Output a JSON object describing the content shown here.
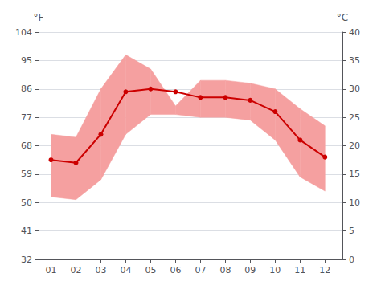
{
  "chart_data": {
    "type": "line",
    "x": [
      1,
      2,
      3,
      4,
      5,
      6,
      7,
      8,
      9,
      10,
      11,
      12
    ],
    "xlim": [
      0.5,
      12.7
    ],
    "xticks": [
      {
        "value": 1,
        "label": "01"
      },
      {
        "value": 2,
        "label": "02"
      },
      {
        "value": 3,
        "label": "03"
      },
      {
        "value": 4,
        "label": "04"
      },
      {
        "value": 5,
        "label": "05"
      },
      {
        "value": 6,
        "label": "06"
      },
      {
        "value": 7,
        "label": "07"
      },
      {
        "value": 8,
        "label": "08"
      },
      {
        "value": 9,
        "label": "09"
      },
      {
        "value": 10,
        "label": "10"
      },
      {
        "value": 11,
        "label": "11"
      },
      {
        "value": 12,
        "label": "12"
      }
    ],
    "ylabel": "°F",
    "ylim": [
      32,
      104
    ],
    "yticks": [
      32,
      41,
      50,
      59,
      68,
      77,
      86,
      95,
      104
    ],
    "y2label": "°C",
    "y2lim": [
      0,
      40
    ],
    "y2ticks": [
      0,
      5,
      10,
      15,
      20,
      25,
      30,
      35,
      40
    ],
    "grid": true,
    "series": [
      {
        "type": "band",
        "axis": "y2",
        "color": "#f5a0a0",
        "low": [
          11.0,
          10.5,
          14.0,
          22.0,
          25.5,
          25.5,
          25.0,
          25.0,
          24.5,
          21.0,
          14.5,
          12.0
        ],
        "high": [
          22.0,
          21.5,
          30.0,
          36.0,
          33.5,
          27.0,
          31.5,
          31.5,
          31.0,
          30.0,
          26.5,
          23.5
        ]
      },
      {
        "type": "line",
        "axis": "y2",
        "color": "#cc0000",
        "marker": "circle",
        "values": [
          17.5,
          17.0,
          22.0,
          29.5,
          30.0,
          29.5,
          28.5,
          28.5,
          28.0,
          26.0,
          21.0,
          18.0
        ]
      }
    ]
  }
}
